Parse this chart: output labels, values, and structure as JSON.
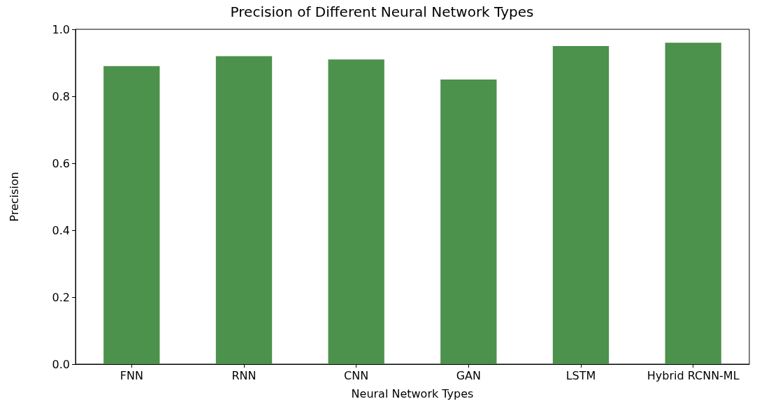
{
  "chart_data": {
    "type": "bar",
    "title": "Precision of Different Neural Network Types",
    "xlabel": "Neural Network Types",
    "ylabel": "Precision",
    "categories": [
      "FNN",
      "RNN",
      "CNN",
      "GAN",
      "LSTM",
      "Hybrid RCNN-ML"
    ],
    "values": [
      0.89,
      0.92,
      0.91,
      0.85,
      0.95,
      0.96
    ],
    "color": "#4c914c",
    "ylim": [
      0,
      1.0
    ],
    "yticks": [
      {
        "value": 0,
        "label": "0.0"
      },
      {
        "value": 0.2,
        "label": "0.2"
      },
      {
        "value": 0.4,
        "label": "0.4"
      },
      {
        "value": 0.6,
        "label": "0.6"
      },
      {
        "value": 0.8,
        "label": "0.8"
      },
      {
        "value": 1,
        "label": "1.0"
      }
    ],
    "grid": false
  }
}
